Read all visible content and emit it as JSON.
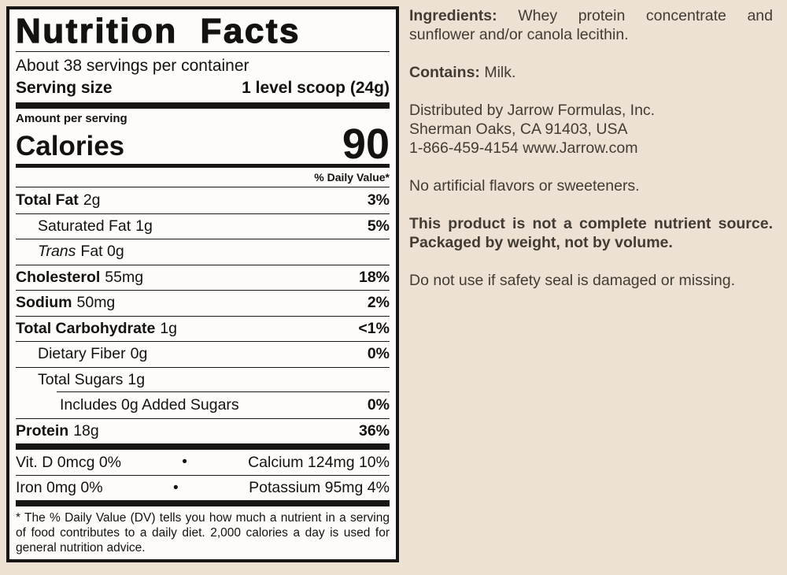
{
  "colors": {
    "page_bg": "#ece1d2",
    "label_bg": "#fdfcfa",
    "label_border": "#181512",
    "label_text": "#141210",
    "side_text": "#423c34",
    "rule": "#1c1915"
  },
  "label": {
    "title": "Nutrition Facts",
    "servings_per_container": "About 38 servings per container",
    "serving_size_label": "Serving size",
    "serving_size_value": "1 level scoop (24g)",
    "amount_per_serving": "Amount per serving",
    "calories_label": "Calories",
    "calories_value": "90",
    "daily_value_header": "% Daily Value*",
    "rows": [
      {
        "name": "Total Fat",
        "amount": "2g",
        "dv": "3%"
      },
      {
        "name": "Saturated Fat",
        "amount": "1g",
        "dv": "5%"
      },
      {
        "name": "Trans",
        "amount": "Fat 0g",
        "dv": ""
      },
      {
        "name": "Cholesterol",
        "amount": "55mg",
        "dv": "18%"
      },
      {
        "name": "Sodium",
        "amount": "50mg",
        "dv": "2%"
      },
      {
        "name": "Total Carbohydrate",
        "amount": "1g",
        "dv": "<1%"
      },
      {
        "name": "Dietary Fiber",
        "amount": "0g",
        "dv": "0%"
      },
      {
        "name": "Total Sugars",
        "amount": "1g",
        "dv": ""
      },
      {
        "name": "Includes 0g Added Sugars",
        "amount": "",
        "dv": "0%"
      },
      {
        "name": "Protein",
        "amount": "18g",
        "dv": "36%"
      }
    ],
    "micros_bullet": "•",
    "micros": [
      {
        "left": "Vit. D 0mcg 0%",
        "right": "Calcium 124mg 10%"
      },
      {
        "left": "Iron 0mg 0%",
        "right": "Potassium 95mg 4%"
      }
    ],
    "footnote": "* The % Daily Value (DV) tells you how much a nutrient in a serving of food contributes to a daily diet. 2,000 calories a day is used for general nutrition advice."
  },
  "side": {
    "ingredients_label": "Ingredients:",
    "ingredients_text": " Whey protein concentrate and sunflower and/or canola lecithin.",
    "contains_label": "Contains:",
    "contains_text": " Milk.",
    "distributor_line1": "Distributed by Jarrow Formulas, Inc.",
    "distributor_line2": "Sherman Oaks, CA 91403, USA",
    "distributor_line3": "1-866-459-4154  www.Jarrow.com",
    "no_artificial": "No artificial flavors or sweeteners.",
    "nutrient_source": "This product is not a complete nutrient source. Packaged by weight, not by volume.",
    "safety_seal": "Do not use if safety seal is damaged or missing."
  }
}
